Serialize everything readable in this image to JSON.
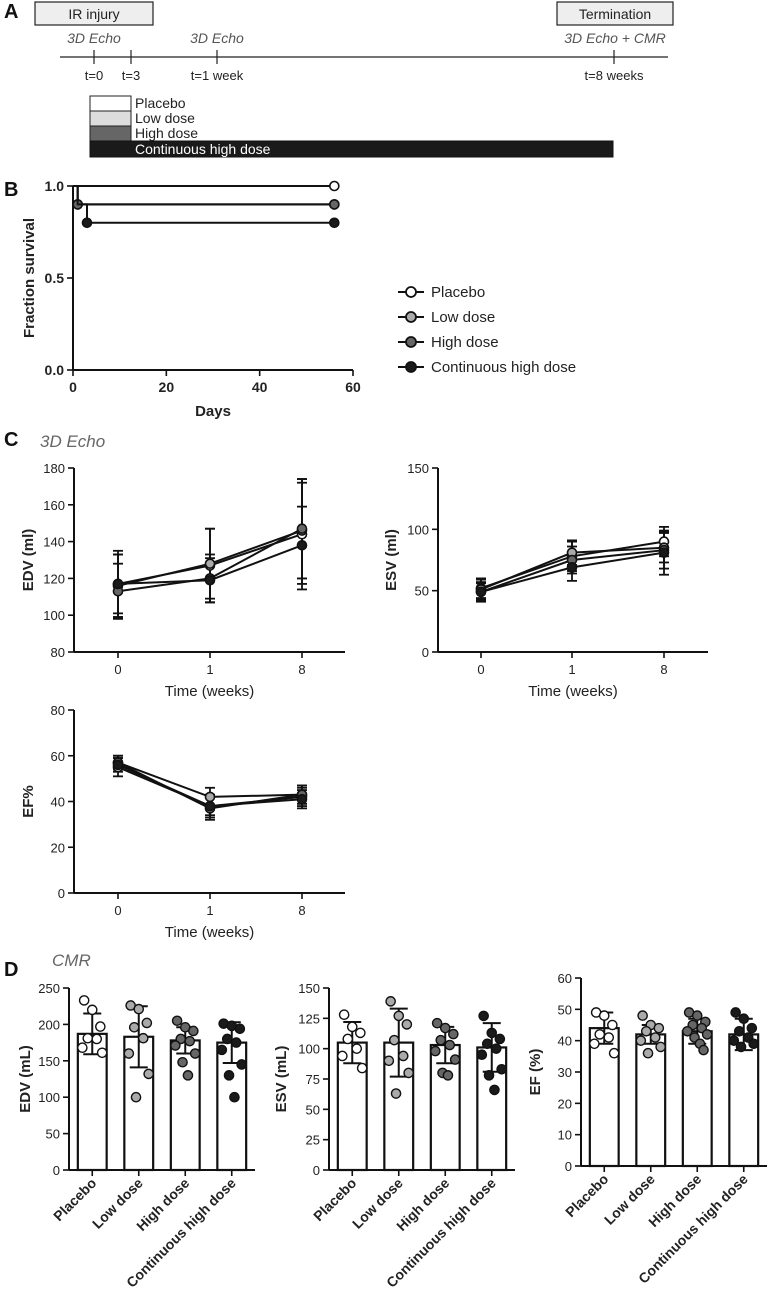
{
  "colors": {
    "placebo": "#ffffff",
    "low_dose": "#aaaaaa",
    "high_dose": "#666666",
    "continuous_high_dose": "#1a1a1a",
    "axis": "#111111"
  },
  "panel_A": {
    "letter": "A",
    "box_left": "IR injury",
    "box_right": "Termination",
    "echo_labels": [
      "3D Echo",
      "3D Echo",
      "3D Echo + CMR"
    ],
    "time_labels": [
      "t=0",
      "t=3",
      "t=1 week",
      "t=8 weeks"
    ],
    "dose_bars": [
      "Placebo",
      "Low dose",
      "High dose",
      "Continuous high dose"
    ]
  },
  "legend": [
    "Placebo",
    "Low dose",
    "High dose",
    "Continuous high dose"
  ],
  "panel_letters": {
    "B": "B",
    "C": "C",
    "D": "D"
  },
  "section_labels": {
    "echo": "3D Echo",
    "cmr": "CMR"
  },
  "chart_data": [
    {
      "id": "survival",
      "type": "line",
      "step": true,
      "title": "",
      "xlabel": "Days",
      "ylabel": "Fraction survival",
      "xlim": [
        0,
        60
      ],
      "ylim": [
        0,
        1.0
      ],
      "xticks": [
        0,
        20,
        40,
        60
      ],
      "yticks": [
        0.0,
        0.5,
        1.0
      ],
      "ytick_labels": [
        "0.0",
        "0.5",
        "1.0"
      ],
      "series": [
        {
          "name": "Placebo",
          "x": [
            0,
            56
          ],
          "y": [
            1.0,
            1.0
          ],
          "markers_x": [
            56
          ],
          "markers_y": [
            1.0
          ]
        },
        {
          "name": "Low dose",
          "x": [
            0,
            1,
            56
          ],
          "y": [
            1.0,
            0.9,
            0.9
          ],
          "markers_x": [
            1,
            56
          ],
          "markers_y": [
            0.9,
            0.9
          ]
        },
        {
          "name": "High dose",
          "x": [
            0,
            1,
            56
          ],
          "y": [
            1.0,
            0.9,
            0.9
          ],
          "markers_x": [
            1,
            56
          ],
          "markers_y": [
            0.9,
            0.9
          ]
        },
        {
          "name": "Continuous high dose",
          "x": [
            0,
            1,
            3,
            56
          ],
          "y": [
            1.0,
            0.9,
            0.8,
            0.8
          ],
          "markers_x": [
            3,
            56
          ],
          "markers_y": [
            0.8,
            0.8
          ]
        }
      ]
    },
    {
      "id": "echo_edv",
      "type": "line",
      "xlabel": "Time (weeks)",
      "ylabel": "EDV (ml)",
      "categories": [
        "0",
        "1",
        "8"
      ],
      "ylim": [
        80,
        180
      ],
      "yticks": [
        80,
        100,
        120,
        140,
        160,
        180
      ],
      "series": [
        {
          "name": "Placebo",
          "values": [
            117,
            127,
            144
          ],
          "err": [
            18,
            20,
            30
          ]
        },
        {
          "name": "Low dose",
          "values": [
            116,
            128,
            146
          ],
          "err": [
            17,
            19,
            26
          ]
        },
        {
          "name": "High dose",
          "values": [
            113,
            120,
            147
          ],
          "err": [
            15,
            13,
            27
          ]
        },
        {
          "name": "Continuous high dose",
          "values": [
            117,
            119,
            138
          ],
          "err": [
            16,
            12,
            21
          ]
        }
      ]
    },
    {
      "id": "echo_esv",
      "type": "line",
      "xlabel": "Time (weeks)",
      "ylabel": "ESV (ml)",
      "categories": [
        "0",
        "1",
        "8"
      ],
      "ylim": [
        0,
        150
      ],
      "yticks": [
        0,
        50,
        100,
        150
      ],
      "series": [
        {
          "name": "Placebo",
          "values": [
            52,
            78,
            90
          ],
          "err": [
            8,
            12,
            12
          ]
        },
        {
          "name": "Low dose",
          "values": [
            51,
            81,
            85
          ],
          "err": [
            8,
            10,
            12
          ]
        },
        {
          "name": "High dose",
          "values": [
            49,
            75,
            83
          ],
          "err": [
            7,
            11,
            15
          ]
        },
        {
          "name": "Continuous high dose",
          "values": [
            49,
            69,
            81
          ],
          "err": [
            8,
            11,
            18
          ]
        }
      ]
    },
    {
      "id": "echo_ef",
      "type": "line",
      "xlabel": "Time (weeks)",
      "ylabel": "EF%",
      "categories": [
        "0",
        "1",
        "8"
      ],
      "ylim": [
        0,
        80
      ],
      "yticks": [
        0,
        20,
        40,
        60,
        80
      ],
      "series": [
        {
          "name": "Placebo",
          "values": [
            55,
            38,
            42
          ],
          "err": [
            4,
            4,
            4
          ]
        },
        {
          "name": "Low dose",
          "values": [
            57,
            42,
            43
          ],
          "err": [
            3,
            4,
            4
          ]
        },
        {
          "name": "High dose",
          "values": [
            57,
            37,
            43
          ],
          "err": [
            3,
            5,
            4
          ]
        },
        {
          "name": "Continuous high dose",
          "values": [
            56,
            38,
            41
          ],
          "err": [
            3,
            5,
            4
          ]
        }
      ]
    },
    {
      "id": "cmr_edv",
      "type": "bar",
      "ylabel": "EDV (mL)",
      "categories": [
        "Placebo",
        "Low dose",
        "High dose",
        "Continuous high dose"
      ],
      "ylim": [
        0,
        250
      ],
      "yticks": [
        0,
        50,
        100,
        150,
        200,
        250
      ],
      "values": [
        187,
        183,
        178,
        175
      ],
      "sd": [
        28,
        42,
        18,
        28
      ],
      "points": [
        [
          233,
          220,
          197,
          181,
          180,
          168,
          161
        ],
        [
          226,
          221,
          202,
          196,
          181,
          160,
          132,
          100
        ],
        [
          205,
          196,
          191,
          180,
          177,
          171,
          160,
          148,
          130
        ],
        [
          201,
          198,
          194,
          180,
          175,
          165,
          145,
          130,
          100
        ]
      ]
    },
    {
      "id": "cmr_esv",
      "type": "bar",
      "ylabel": "ESV (mL)",
      "categories": [
        "Placebo",
        "Low dose",
        "High dose",
        "Continuous high dose"
      ],
      "ylim": [
        0,
        150
      ],
      "yticks": [
        0,
        25,
        50,
        75,
        100,
        125,
        150
      ],
      "values": [
        105,
        105,
        103,
        101
      ],
      "sd": [
        17,
        28,
        15,
        20
      ],
      "points": [
        [
          128,
          118,
          113,
          108,
          100,
          94,
          84
        ],
        [
          139,
          127,
          120,
          107,
          94,
          90,
          80,
          63
        ],
        [
          121,
          117,
          112,
          107,
          103,
          98,
          91,
          80,
          78
        ],
        [
          127,
          113,
          108,
          104,
          100,
          95,
          83,
          78,
          66
        ]
      ]
    },
    {
      "id": "cmr_ef",
      "type": "bar",
      "ylabel": "EF (%)",
      "categories": [
        "Placebo",
        "Low dose",
        "High dose",
        "Continuous high dose"
      ],
      "ylim": [
        0,
        60
      ],
      "yticks": [
        0,
        10,
        20,
        30,
        40,
        50,
        60
      ],
      "values": [
        44,
        42,
        43,
        42
      ],
      "sd": [
        5,
        3,
        4,
        5
      ],
      "points": [
        [
          49,
          48,
          45,
          42,
          41,
          39,
          36
        ],
        [
          48,
          45,
          44,
          43,
          41,
          40,
          38,
          36
        ],
        [
          49,
          48,
          46,
          45,
          44,
          43,
          42,
          41,
          39,
          37
        ],
        [
          49,
          47,
          44,
          43,
          41,
          40,
          39,
          38
        ]
      ]
    }
  ]
}
